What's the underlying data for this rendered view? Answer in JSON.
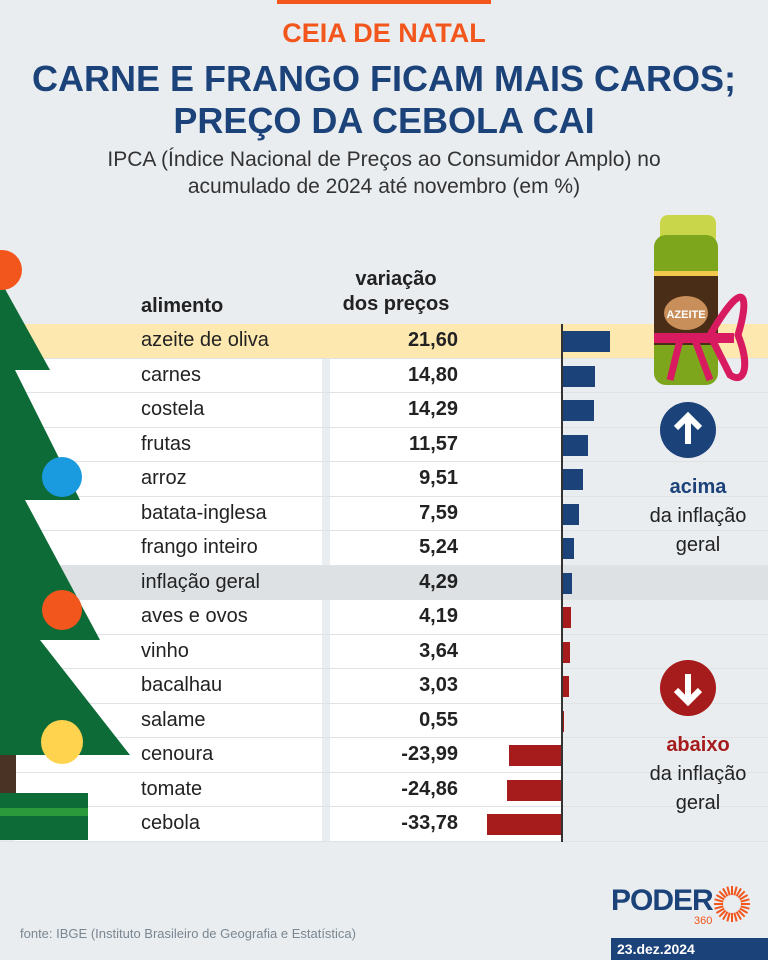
{
  "header": {
    "kicker": "CEIA DE NATAL",
    "title_line1": "CARNE E FRANGO FICAM MAIS CAROS;",
    "title_line2": "PREÇO DA CEBOLA CAI",
    "subtitle_line1": "IPCA (Índice Nacional de Preços ao Consumidor Amplo) no",
    "subtitle_line2": "acumulado de 2024 até novembro (em %)"
  },
  "chart_data": {
    "type": "bar",
    "orientation": "horizontal",
    "column_headers": {
      "category": "alimento",
      "value_line1": "variação",
      "value_line2": "dos preços"
    },
    "categories": [
      "azeite de oliva",
      "carnes",
      "costela",
      "frutas",
      "arroz",
      "batata-inglesa",
      "frango inteiro",
      "inflação geral",
      "aves e ovos",
      "vinho",
      "bacalhau",
      "salame",
      "cenoura",
      "tomate",
      "cebola"
    ],
    "values": [
      21.6,
      14.8,
      14.29,
      11.57,
      9.51,
      7.59,
      5.24,
      4.29,
      4.19,
      3.64,
      3.03,
      0.55,
      -23.99,
      -24.86,
      -33.78
    ],
    "value_labels": [
      "21,60",
      "14,80",
      "14,29",
      "11,57",
      "9,51",
      "7,59",
      "5,24",
      "4,29",
      "4,19",
      "3,64",
      "3,03",
      "0,55",
      "-23,99",
      "-24,86",
      "-33,78"
    ],
    "colors": {
      "above": "#1b4279",
      "below": "#a61c1c",
      "highlight": "#fde9b0",
      "reference_row": "#dde1e4"
    }
  },
  "legend": {
    "above_word": "acima",
    "above_rest_1": "da inflação",
    "above_rest_2": "geral",
    "below_word": "abaixo",
    "below_rest_1": "da inflação",
    "below_rest_2": "geral",
    "up_icon": "arrow-up-icon",
    "down_icon": "arrow-down-icon"
  },
  "illustration": {
    "bottle_label": "AZEITE"
  },
  "footer": {
    "source": "fonte: IBGE (Instituto Brasileiro de Geografia e Estatística)",
    "logo": "PODER",
    "logo_sub": "360",
    "date": "23.dez.2024"
  }
}
